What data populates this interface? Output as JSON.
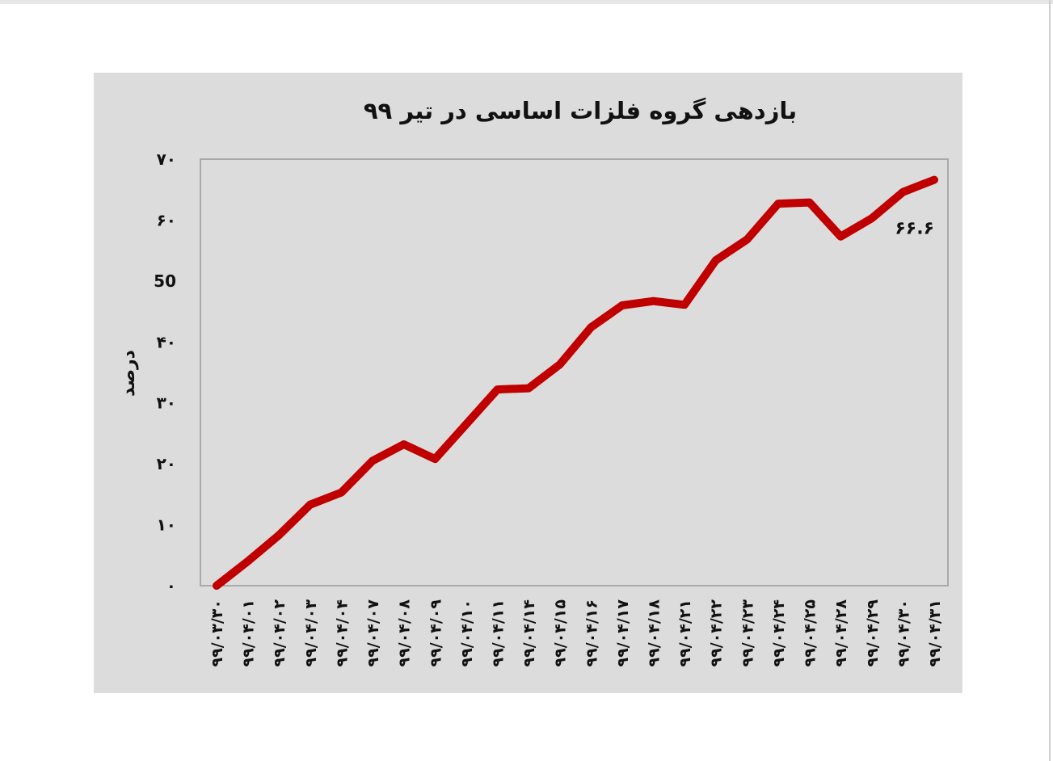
{
  "chart_data": {
    "type": "line",
    "title": "بازدهی گروه فلزات اساسی در تیر ۹۹",
    "ylabel": "درصد",
    "xlabel": "",
    "ylim": [
      0,
      70
    ],
    "yticks": [
      "۰",
      "۱۰",
      "۲۰",
      "۳۰",
      "۴۰",
      "50",
      "۶۰",
      "۷۰"
    ],
    "grid": false,
    "legend": "none",
    "line_color": "#c00000",
    "categories": [
      "۹۹/۰۳/۳۰",
      "۹۹/۰۴/۰۱",
      "۹۹/۰۴/۰۲",
      "۹۹/۰۴/۰۳",
      "۹۹/۰۴/۰۴",
      "۹۹/۰۴/۰۷",
      "۹۹/۰۴/۰۸",
      "۹۹/۰۴/۰۹",
      "۹۹/۰۴/۱۰",
      "۹۹/۰۴/۱۱",
      "۹۹/۰۴/۱۴",
      "۹۹/۰۴/۱۵",
      "۹۹/۰۴/۱۶",
      "۹۹/۰۴/۱۷",
      "۹۹/۰۴/۱۸",
      "۹۹/۰۴/۲۱",
      "۹۹/۰۴/۲۲",
      "۹۹/۰۴/۲۳",
      "۹۹/۰۴/۲۴",
      "۹۹/۰۴/۲۵",
      "۹۹/۰۴/۲۸",
      "۹۹/۰۴/۲۹",
      "۹۹/۰۴/۳۰",
      "۹۹/۰۴/۳۱"
    ],
    "values": [
      0,
      4,
      8.3,
      13.3,
      15.3,
      20.5,
      23.2,
      20.8,
      26.5,
      32.2,
      32.4,
      36.3,
      42.4,
      46.0,
      46.7,
      46.1,
      53.4,
      56.8,
      62.7,
      62.9,
      57.3,
      60.3,
      64.6,
      66.6
    ],
    "annotations": [
      {
        "text": "۶۶.۶",
        "category": "۹۹/۰۴/۳۱",
        "value": 66.6
      }
    ]
  }
}
